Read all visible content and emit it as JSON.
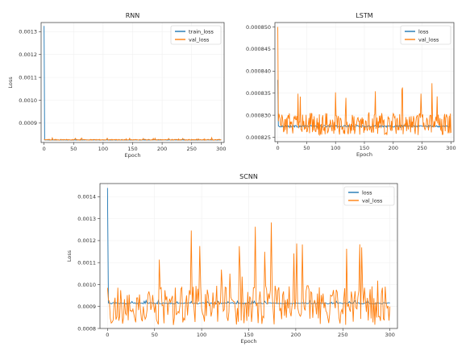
{
  "colors": {
    "series1": "#1f77b4",
    "series2": "#ff7f0e"
  },
  "chart_data": [
    {
      "id": "rnn",
      "type": "line",
      "title": "RNN",
      "xlabel": "Epoch",
      "ylabel": "Loss",
      "xlim": [
        -5,
        305
      ],
      "ylim": [
        0.000815,
        0.00134
      ],
      "xticks": [
        0,
        50,
        100,
        150,
        200,
        250,
        300
      ],
      "yticks": [
        0.0009,
        0.001,
        0.0011,
        0.0012,
        0.0013
      ],
      "ytick_labels": [
        "0.0009",
        "0.0010",
        "0.0011",
        "0.0012",
        "0.0013"
      ],
      "legend": "top-right",
      "series": [
        {
          "name": "train_loss",
          "color": "#1f77b4",
          "start": 0.001325,
          "base": 0.000826,
          "noise": 5e-07
        },
        {
          "name": "val_loss",
          "color": "#ff7f0e",
          "start": 0.00083,
          "base": 0.000827,
          "noise": 2e-06
        }
      ]
    },
    {
      "id": "lstm",
      "type": "line",
      "title": "LSTM",
      "xlabel": "Epoch",
      "ylabel": "",
      "xlim": [
        -5,
        305
      ],
      "ylim": [
        0.000824,
        0.000851
      ],
      "xticks": [
        0,
        50,
        100,
        150,
        200,
        250,
        300
      ],
      "yticks": [
        0.000825,
        0.00083,
        0.000835,
        0.00084,
        0.000845,
        0.00085
      ],
      "ytick_labels": [
        "0.000825",
        "0.000830",
        "0.000835",
        "0.000840",
        "0.000845",
        "0.000850"
      ],
      "legend": "top-right",
      "series": [
        {
          "name": "loss",
          "color": "#1f77b4",
          "start": 0.000838,
          "base": 0.0008275,
          "noise": 2e-07
        },
        {
          "name": "val_loss",
          "color": "#ff7f0e",
          "start": 0.00085,
          "base": 0.000828,
          "noise": 2.5e-06
        }
      ]
    },
    {
      "id": "scnn",
      "type": "line",
      "title": "SCNN",
      "xlabel": "Epoch",
      "ylabel": "Loss",
      "xlim": [
        -8,
        308
      ],
      "ylim": [
        0.0008,
        0.00146
      ],
      "xticks": [
        0,
        50,
        100,
        150,
        200,
        250,
        300
      ],
      "yticks": [
        0.0008,
        0.0009,
        0.001,
        0.0011,
        0.0012,
        0.0013,
        0.0014
      ],
      "ytick_labels": [
        "0.0008",
        "0.0009",
        "0.0010",
        "0.0011",
        "0.0012",
        "0.0013",
        "0.0014"
      ],
      "legend": "top-right",
      "series": [
        {
          "name": "loss",
          "color": "#1f77b4",
          "start": 0.00144,
          "base": 0.000915,
          "noise": 3e-06
        },
        {
          "name": "val_loss",
          "color": "#ff7f0e",
          "start": 0.000985,
          "base": 0.000905,
          "noise": 9e-05
        }
      ]
    }
  ]
}
